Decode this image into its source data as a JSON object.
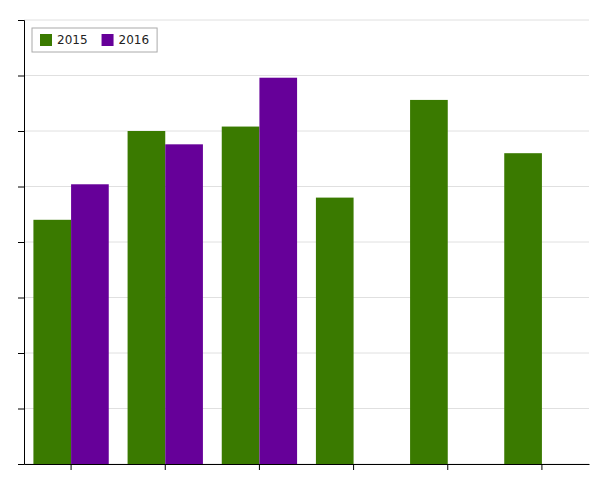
{
  "chart_data": {
    "type": "bar",
    "categories": [
      null,
      null,
      null,
      null,
      null,
      null
    ],
    "series": [
      {
        "name": "2015",
        "color": "#3a7a00",
        "values": [
          0.55,
          0.75,
          0.76,
          0.6,
          0.82,
          0.7
        ]
      },
      {
        "name": "2016",
        "color": "#660099",
        "values": [
          0.63,
          0.72,
          0.87,
          null,
          null,
          null
        ]
      }
    ],
    "ylim": [
      0,
      1.0
    ],
    "yticks": [
      0,
      0.125,
      0.25,
      0.375,
      0.5,
      0.625,
      0.75,
      0.875,
      1.0
    ],
    "grid": true,
    "tick_labels": false,
    "legend": "upper left"
  }
}
